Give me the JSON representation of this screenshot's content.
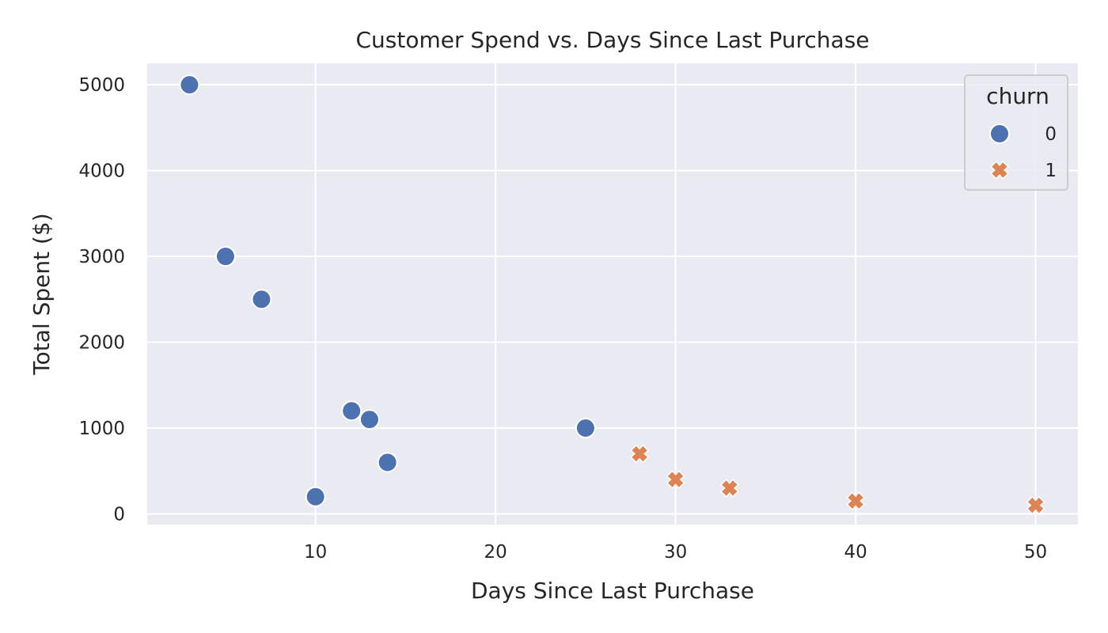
{
  "chart_data": {
    "type": "scatter",
    "title": "Customer Spend vs. Days Since Last Purchase",
    "xlabel": "Days Since Last Purchase",
    "ylabel": "Total Spent ($)",
    "xlim": [
      0.65,
      52.35
    ],
    "ylim": [
      -125,
      5250
    ],
    "xticks": [
      10,
      20,
      30,
      40,
      50
    ],
    "yticks": [
      0,
      1000,
      2000,
      3000,
      4000,
      5000
    ],
    "grid": true,
    "background": "#eaeaf2",
    "legend": {
      "title": "churn",
      "placement": "top-right"
    },
    "series": [
      {
        "name": "0",
        "marker": "circle",
        "color": "#4c72b0",
        "points": [
          {
            "x": 3,
            "y": 5000
          },
          {
            "x": 5,
            "y": 3000
          },
          {
            "x": 7,
            "y": 2500
          },
          {
            "x": 10,
            "y": 200
          },
          {
            "x": 12,
            "y": 1200
          },
          {
            "x": 13,
            "y": 1100
          },
          {
            "x": 14,
            "y": 600
          },
          {
            "x": 25,
            "y": 1000
          }
        ]
      },
      {
        "name": "1",
        "marker": "x",
        "color": "#dd8452",
        "points": [
          {
            "x": 28,
            "y": 700
          },
          {
            "x": 30,
            "y": 400
          },
          {
            "x": 33,
            "y": 300
          },
          {
            "x": 40,
            "y": 150
          },
          {
            "x": 50,
            "y": 100
          }
        ]
      }
    ]
  }
}
